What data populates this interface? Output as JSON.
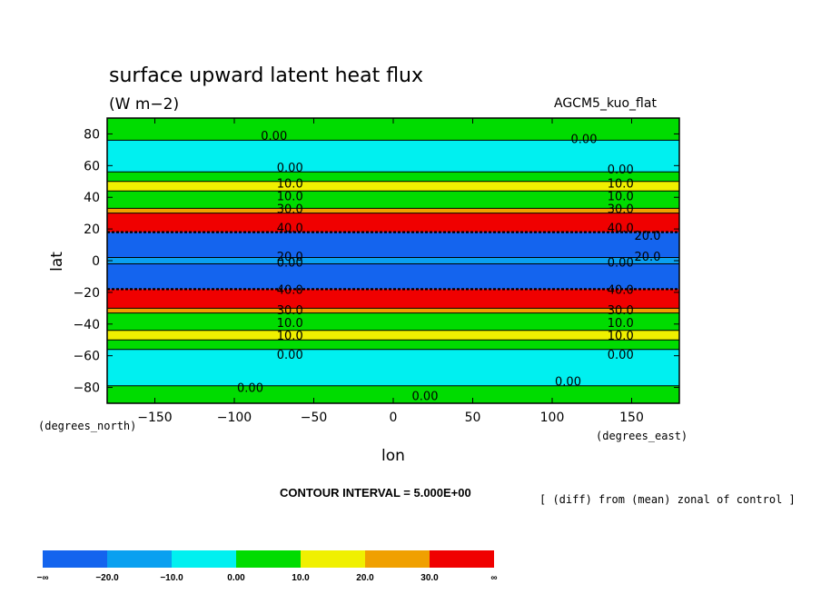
{
  "chart_data": {
    "type": "heatmap",
    "title": "surface upward latent heat flux",
    "subtitle": "(W m−2)",
    "model_label": "AGCM5_kuo_flat",
    "xlabel": "lon",
    "ylabel": "lat",
    "x_units": "(degrees_east)",
    "y_units": "(degrees_north)",
    "xlim": [
      -180,
      180
    ],
    "ylim": [
      -90,
      90
    ],
    "x_ticks": [
      -150,
      -100,
      -50,
      0,
      50,
      100,
      150
    ],
    "y_ticks": [
      -80,
      -60,
      -40,
      -20,
      0,
      20,
      40,
      60,
      80
    ],
    "x_tick_labels": [
      "−150",
      "−100",
      "−50",
      "0",
      "50",
      "100",
      "150"
    ],
    "y_tick_labels": [
      "−80",
      "−60",
      "−40",
      "−20",
      "0",
      "20",
      "40",
      "60",
      "80"
    ],
    "contour_interval": "CONTOUR INTERVAL = 5.000E+00",
    "note": "[ (diff) from (mean) zonal of control ]",
    "colorbar": {
      "levels": [
        "−∞",
        "−20.0",
        "−10.0",
        "0.00",
        "10.0",
        "20.0",
        "30.0",
        "∞"
      ],
      "colors": [
        "#1464ee",
        "#0aa0f0",
        "#00f0f0",
        "#00dc00",
        "#f0f000",
        "#f0a000",
        "#f00000"
      ]
    },
    "zonal_bands": [
      {
        "lat": [
          -90,
          -79
        ],
        "level": "0.00 to 10.0",
        "color": "#00dc00"
      },
      {
        "lat": [
          -79,
          -56
        ],
        "level": "−10.0 to 0.00",
        "color": "#00f0f0"
      },
      {
        "lat": [
          -56,
          -50
        ],
        "level": "0.00 to 10.0",
        "color": "#00dc00"
      },
      {
        "lat": [
          -50,
          -44
        ],
        "level": "10.0 to 20.0",
        "color": "#f0f000"
      },
      {
        "lat": [
          -44,
          -33
        ],
        "level": "0.00 to 10.0",
        "color": "#00dc00"
      },
      {
        "lat": [
          -33,
          -30
        ],
        "level": "20.0 to 30.0",
        "color": "#f0a000"
      },
      {
        "lat": [
          -30,
          -18
        ],
        "level": "30.0 to ∞",
        "color": "#f00000"
      },
      {
        "lat": [
          -18,
          -2
        ],
        "level": "−∞ to −20.0",
        "color": "#1464ee"
      },
      {
        "lat": [
          -2,
          2
        ],
        "level": "−20.0 to −10.0",
        "color": "#0aa0f0"
      },
      {
        "lat": [
          2,
          18
        ],
        "level": "−∞ to −20.0",
        "color": "#1464ee"
      },
      {
        "lat": [
          18,
          30
        ],
        "level": "30.0 to ∞",
        "color": "#f00000"
      },
      {
        "lat": [
          30,
          33
        ],
        "level": "20.0 to 30.0",
        "color": "#f0a000"
      },
      {
        "lat": [
          33,
          44
        ],
        "level": "0.00 to 10.0",
        "color": "#00dc00"
      },
      {
        "lat": [
          44,
          50
        ],
        "level": "10.0 to 20.0",
        "color": "#f0f000"
      },
      {
        "lat": [
          50,
          56
        ],
        "level": "0.00 to 10.0",
        "color": "#00dc00"
      },
      {
        "lat": [
          56,
          76
        ],
        "level": "−10.0 to 0.00",
        "color": "#00f0f0"
      },
      {
        "lat": [
          76,
          90
        ],
        "level": "0.00 to 10.0",
        "color": "#00dc00"
      }
    ],
    "contour_labels": [
      {
        "text": "0.00",
        "lon": -75,
        "lat": 79
      },
      {
        "text": "0.00",
        "lon": 120,
        "lat": 77
      },
      {
        "text": "0.00",
        "lon": -65,
        "lat": 59
      },
      {
        "text": "0.00",
        "lon": 143,
        "lat": 58
      },
      {
        "text": "10.0",
        "lon": -65,
        "lat": 49
      },
      {
        "text": "10.0",
        "lon": 143,
        "lat": 49
      },
      {
        "text": "10.0",
        "lon": -65,
        "lat": 41
      },
      {
        "text": "10.0",
        "lon": 143,
        "lat": 41
      },
      {
        "text": "30.0",
        "lon": -65,
        "lat": 33
      },
      {
        "text": "30.0",
        "lon": 143,
        "lat": 33
      },
      {
        "text": "40.0",
        "lon": -65,
        "lat": 21
      },
      {
        "text": "40.0",
        "lon": 143,
        "lat": 21
      },
      {
        "text": "20.0",
        "lon": 160,
        "lat": 16
      },
      {
        "text": "20.0",
        "lon": -65,
        "lat": 3
      },
      {
        "text": "20.0",
        "lon": 160,
        "lat": 3
      },
      {
        "text": "0.00",
        "lon": -65,
        "lat": -1
      },
      {
        "text": "0.00",
        "lon": 143,
        "lat": -1
      },
      {
        "text": "40.0",
        "lon": -65,
        "lat": -18
      },
      {
        "text": "40.0",
        "lon": 143,
        "lat": -18
      },
      {
        "text": "30.0",
        "lon": -65,
        "lat": -31
      },
      {
        "text": "30.0",
        "lon": 143,
        "lat": -31
      },
      {
        "text": "10.0",
        "lon": -65,
        "lat": -39
      },
      {
        "text": "10.0",
        "lon": 143,
        "lat": -39
      },
      {
        "text": "10.0",
        "lon": -65,
        "lat": -47
      },
      {
        "text": "10.0",
        "lon": 143,
        "lat": -47
      },
      {
        "text": "0.00",
        "lon": -65,
        "lat": -59
      },
      {
        "text": "0.00",
        "lon": 143,
        "lat": -59
      },
      {
        "text": "0.00",
        "lon": -90,
        "lat": -80
      },
      {
        "text": "0.00",
        "lon": 110,
        "lat": -76
      },
      {
        "text": "0.00",
        "lon": 20,
        "lat": -85
      }
    ]
  }
}
